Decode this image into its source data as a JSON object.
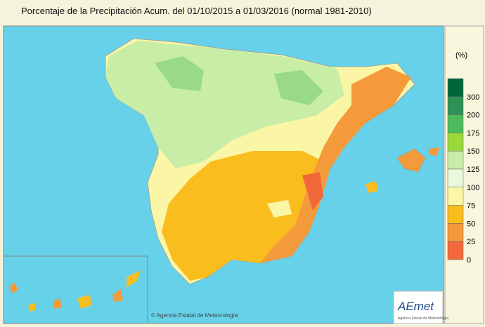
{
  "header": {
    "title": "Porcentaje de la Precipitación Acum. del 01/10/2015 a  01/03/2016  (normal 1981-2010)"
  },
  "legend": {
    "unit": "(%)",
    "items": [
      {
        "label": "300",
        "color": "#00663a"
      },
      {
        "label": "200",
        "color": "#2e9155"
      },
      {
        "label": "175",
        "color": "#4cbb5c"
      },
      {
        "label": "150",
        "color": "#9ad93a"
      },
      {
        "label": "125",
        "color": "#c8eda6"
      },
      {
        "label": "100",
        "color": "#eaf8dc"
      },
      {
        "label": "75",
        "color": "#fbf6a6"
      },
      {
        "label": "50",
        "color": "#f9be1e"
      },
      {
        "label": "25",
        "color": "#f59a3a"
      },
      {
        "label": "0",
        "color": "#f2683a"
      }
    ]
  },
  "credit": "© Agencia Estatal de Meteorología",
  "logo": {
    "name": "AEmet",
    "subtitle": "Agencia Estatal de Meteorología"
  }
}
